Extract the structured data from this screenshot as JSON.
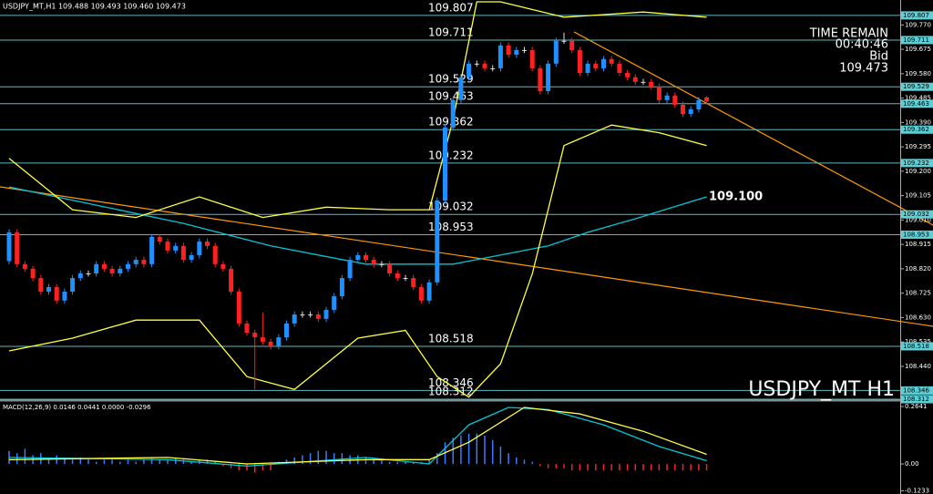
{
  "chart_data": [
    {
      "type": "candlestick",
      "title": "USDJPY_MT,H1  109.488 109.493 109.460 109.473",
      "watermark": "USDJPY_MT H1",
      "info": {
        "time_label": "TIME REMAIN",
        "time": "00:40:46",
        "bid_label": "Bid",
        "bid": "109.473"
      },
      "up_color": "#1e90ff",
      "down_color": "#ff2020",
      "open": [
        108.85,
        108.962,
        108.838,
        108.82,
        108.784,
        108.731,
        108.749,
        108.696,
        108.731,
        108.784,
        108.802,
        108.802,
        108.838,
        108.82,
        108.802,
        108.82,
        108.838,
        108.855,
        108.838,
        108.944,
        108.926,
        108.891,
        108.909,
        108.855,
        108.873,
        108.926,
        108.909,
        108.838,
        108.82,
        108.731,
        108.607,
        108.571,
        108.553,
        108.536,
        108.518,
        108.553,
        108.607,
        108.642,
        108.642,
        108.642,
        108.625,
        108.66,
        108.713,
        108.784,
        108.855,
        108.873,
        108.855,
        108.838,
        108.838,
        108.802,
        108.784,
        108.784,
        108.749,
        108.696,
        108.767,
        109.086,
        109.37,
        109.477,
        109.566,
        109.619,
        109.619,
        109.601,
        109.601,
        109.69,
        109.654,
        109.672,
        109.672,
        109.601,
        109.512,
        109.619,
        109.708,
        109.708,
        109.672,
        109.583,
        109.619,
        109.601,
        109.637,
        109.619,
        109.583,
        109.566,
        109.548,
        109.548,
        109.53,
        109.477,
        109.495,
        109.459,
        109.423,
        109.441,
        109.488
      ],
      "high": [
        108.974,
        108.974,
        108.85,
        108.832,
        108.796,
        108.761,
        108.761,
        108.743,
        108.796,
        108.814,
        108.814,
        108.85,
        108.85,
        108.832,
        108.832,
        108.85,
        108.867,
        108.867,
        108.956,
        108.956,
        108.938,
        108.921,
        108.921,
        108.885,
        108.938,
        108.938,
        108.921,
        108.85,
        108.832,
        108.743,
        108.619,
        108.583,
        108.65,
        108.548,
        108.565,
        108.619,
        108.654,
        108.654,
        108.654,
        108.654,
        108.672,
        108.725,
        108.796,
        108.867,
        108.885,
        108.885,
        108.867,
        108.85,
        108.85,
        108.814,
        108.796,
        108.796,
        108.761,
        108.779,
        109.098,
        109.382,
        109.489,
        109.578,
        109.631,
        109.631,
        109.631,
        109.613,
        109.702,
        109.702,
        109.684,
        109.684,
        109.684,
        109.613,
        109.631,
        109.72,
        109.74,
        109.72,
        109.684,
        109.631,
        109.631,
        109.649,
        109.649,
        109.631,
        109.595,
        109.578,
        109.56,
        109.56,
        109.542,
        109.507,
        109.507,
        109.471,
        109.453,
        109.489,
        109.493
      ],
      "low": [
        108.838,
        108.826,
        108.808,
        108.772,
        108.719,
        108.719,
        108.684,
        108.684,
        108.719,
        108.772,
        108.79,
        108.79,
        108.808,
        108.79,
        108.79,
        108.808,
        108.826,
        108.826,
        108.826,
        108.914,
        108.879,
        108.879,
        108.843,
        108.843,
        108.861,
        108.897,
        108.826,
        108.808,
        108.719,
        108.595,
        108.559,
        108.35,
        108.524,
        108.506,
        108.506,
        108.541,
        108.595,
        108.63,
        108.63,
        108.613,
        108.613,
        108.648,
        108.701,
        108.772,
        108.843,
        108.843,
        108.826,
        108.826,
        108.79,
        108.772,
        108.772,
        108.737,
        108.684,
        108.684,
        108.755,
        109.074,
        109.358,
        109.465,
        109.554,
        109.607,
        109.589,
        109.589,
        109.589,
        109.642,
        109.642,
        109.66,
        109.589,
        109.5,
        109.5,
        109.607,
        109.696,
        109.66,
        109.571,
        109.571,
        109.589,
        109.589,
        109.607,
        109.571,
        109.554,
        109.536,
        109.536,
        109.518,
        109.465,
        109.465,
        109.447,
        109.411,
        109.411,
        109.429,
        109.46
      ],
      "close": [
        108.962,
        108.838,
        108.82,
        108.784,
        108.731,
        108.749,
        108.696,
        108.731,
        108.784,
        108.802,
        108.802,
        108.838,
        108.82,
        108.802,
        108.82,
        108.838,
        108.855,
        108.838,
        108.944,
        108.926,
        108.891,
        108.909,
        108.855,
        108.873,
        108.926,
        108.909,
        108.838,
        108.82,
        108.731,
        108.607,
        108.571,
        108.553,
        108.536,
        108.518,
        108.553,
        108.607,
        108.642,
        108.642,
        108.642,
        108.625,
        108.66,
        108.713,
        108.784,
        108.855,
        108.873,
        108.855,
        108.838,
        108.838,
        108.802,
        108.784,
        108.784,
        108.749,
        108.696,
        108.767,
        109.086,
        109.37,
        109.477,
        109.566,
        109.619,
        109.619,
        109.601,
        109.601,
        109.69,
        109.654,
        109.672,
        109.672,
        109.601,
        109.512,
        109.619,
        109.708,
        109.708,
        109.672,
        109.583,
        109.619,
        109.601,
        109.637,
        109.619,
        109.583,
        109.566,
        109.548,
        109.548,
        109.53,
        109.477,
        109.495,
        109.459,
        109.423,
        109.441,
        109.477,
        109.473
      ],
      "series": [
        {
          "color": "#00c8d8",
          "x": [
            0,
            11,
            22,
            33,
            45,
            56,
            68,
            73,
            79,
            88
          ],
          "values": [
            109.139,
            109.068,
            108.997,
            108.909,
            108.838,
            108.838,
            108.909,
            108.962,
            109.015,
            109.1
          ]
        },
        {
          "color": "#ffff40",
          "x": [
            0,
            8,
            16,
            24,
            32,
            40,
            48,
            53,
            56,
            59,
            62,
            70,
            80,
            88
          ],
          "values": [
            109.25,
            109.05,
            109.02,
            109.1,
            109.02,
            109.06,
            109.05,
            109.05,
            109.4,
            109.86,
            109.86,
            109.8,
            109.82,
            109.8
          ]
        },
        {
          "color": "#ffff40",
          "x": [
            0,
            8,
            16,
            24,
            30,
            36,
            44,
            50,
            54,
            58,
            62,
            66,
            70,
            76,
            82,
            88
          ],
          "values": [
            108.5,
            108.55,
            108.62,
            108.62,
            108.4,
            108.35,
            108.55,
            108.58,
            108.4,
            108.32,
            108.45,
            108.8,
            109.3,
            109.38,
            109.35,
            109.3
          ]
        }
      ],
      "ma_label": {
        "value": 109.1,
        "label": "109.100"
      },
      "levels": [
        109.807,
        109.711,
        109.529,
        109.463,
        109.362,
        109.232,
        109.032,
        108.953,
        108.518,
        108.346,
        108.312
      ],
      "ylim": [
        108.312,
        109.867
      ],
      "yticks": [
        {
          "value": 109.77,
          "label": "109.770"
        },
        109.675,
        {
          "value": 109.58,
          "label": "109.580"
        },
        109.485,
        {
          "value": 109.39,
          "label": "109.390"
        },
        109.295,
        {
          "value": 109.2,
          "label": "109.200"
        },
        109.105,
        {
          "value": 109.01,
          "label": "109.010"
        },
        108.915,
        {
          "value": 108.82,
          "label": "108.820"
        },
        108.725,
        {
          "value": 108.63,
          "label": "108.630"
        },
        108.535,
        {
          "value": 108.44,
          "label": "108.440"
        }
      ]
    },
    {
      "type": "macd",
      "title": "MACD(12,26,9) 0.0146 0.0441 0.0000 -0.0296",
      "up_color": "#3a7cff",
      "down_color": "#ff2020",
      "values": [
        0.06,
        0.05,
        0.07,
        0.04,
        0.05,
        0.03,
        0.04,
        0.03,
        0.02,
        0.03,
        0.02,
        0.01,
        0.02,
        0.02,
        0.01,
        0.02,
        0.01,
        0.02,
        0.03,
        0.02,
        0.02,
        0.03,
        0.02,
        0.01,
        0.02,
        0.02,
        0.01,
        -0.01,
        -0.02,
        -0.03,
        -0.03,
        -0.04,
        -0.03,
        -0.03,
        0.01,
        0.02,
        0.03,
        0.04,
        0.05,
        0.06,
        0.06,
        0.05,
        0.05,
        0.04,
        0.04,
        0.03,
        0.02,
        0.02,
        0.01,
        0.01,
        0.01,
        0.01,
        0.01,
        0.02,
        0.05,
        0.1,
        0.12,
        0.13,
        0.14,
        0.14,
        0.13,
        0.11,
        0.08,
        0.05,
        0.03,
        0.02,
        0.01,
        -0.01,
        -0.02,
        -0.02,
        -0.02,
        -0.03,
        -0.03,
        -0.03,
        -0.03,
        -0.03,
        -0.03,
        -0.03,
        -0.03,
        -0.03,
        -0.03,
        -0.03,
        -0.03,
        -0.03,
        -0.03,
        -0.03,
        -0.03,
        -0.03,
        -0.03
      ],
      "series": [
        {
          "color": "#00c8d8",
          "x": [
            0,
            20,
            30,
            45,
            53,
            58,
            63,
            68,
            75,
            82,
            88
          ],
          "values": [
            0.03,
            0.02,
            -0.01,
            0.03,
            0.0,
            0.18,
            0.26,
            0.25,
            0.18,
            0.08,
            0.015
          ]
        },
        {
          "color": "#ffff40",
          "x": [
            0,
            20,
            30,
            45,
            53,
            58,
            65,
            72,
            80,
            88
          ],
          "values": [
            0.02,
            0.03,
            0.0,
            0.02,
            0.02,
            0.1,
            0.26,
            0.23,
            0.15,
            0.044
          ]
        }
      ],
      "ylim": [
        -0.138,
        0.285
      ],
      "yticks": [
        0.2641,
        {
          "value": 0,
          "label": "0.00"
        },
        -0.1233
      ]
    }
  ]
}
